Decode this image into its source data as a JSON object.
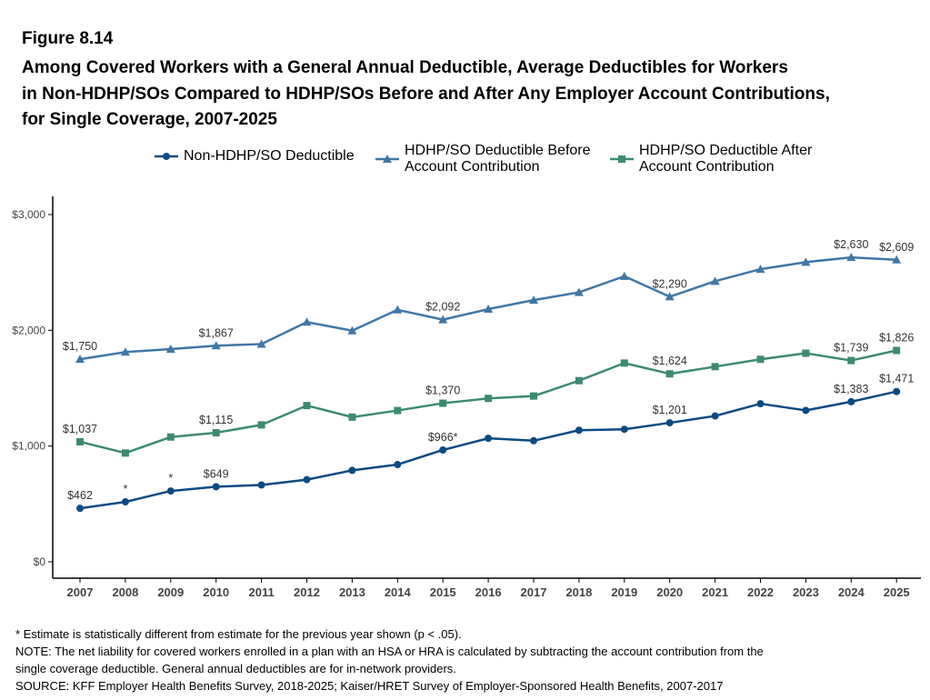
{
  "figure_label": "Figure 8.14",
  "title_lines": [
    "Among Covered Workers with a General Annual Deductible, Average Deductibles for Workers",
    "in Non-HDHP/SOs Compared to HDHP/SOs Before and After Any Employer Account Contributions,",
    "for Single Coverage, 2007-2025"
  ],
  "legend": [
    {
      "label": "Non-HDHP/SO Deductible",
      "marker": "circle",
      "color": "#0a4a82"
    },
    {
      "label": "HDHP/SO Deductible Before\nAccount Contribution",
      "marker": "triangle",
      "color": "#3f77a6"
    },
    {
      "label": "HDHP/SO Deductible After\nAccount Contribution",
      "marker": "square",
      "color": "#3c8a73"
    }
  ],
  "notes": [
    "* Estimate is statistically different from estimate for the previous year shown (p < .05).",
    "NOTE: The net liability for covered workers enrolled in a plan with an HSA or HRA is calculated by subtracting the account contribution from the",
    "single coverage deductible. General annual deductibles are for in-network providers.",
    "SOURCE: KFF Employer Health Benefits Survey, 2018-2025; Kaiser/HRET Survey of Employer-Sponsored Health Benefits, 2007-2017"
  ],
  "chart_data": {
    "type": "line",
    "x": [
      2007,
      2008,
      2009,
      2010,
      2011,
      2012,
      2013,
      2014,
      2015,
      2016,
      2017,
      2018,
      2019,
      2020,
      2021,
      2022,
      2023,
      2024,
      2025
    ],
    "ylim": [
      0,
      3000
    ],
    "yticks": [
      0,
      1000,
      2000,
      3000
    ],
    "ytick_labels": [
      "$0",
      "$1,000",
      "$2,000",
      "$3,000"
    ],
    "grid": false,
    "legend_position": "top",
    "series": [
      {
        "name": "Non-HDHP/SO Deductible",
        "marker": "circle",
        "color": "#0a4a82",
        "values": [
          462,
          518,
          612,
          649,
          664,
          710,
          790,
          840,
          966,
          1067,
          1046,
          1137,
          1145,
          1201,
          1260,
          1366,
          1308,
          1383,
          1471
        ],
        "labels": {
          "0": "$462",
          "1": "*",
          "2": "*",
          "3": "$649",
          "8": "$966*",
          "13": "$1,201",
          "17": "$1,383",
          "18": "$1,471"
        }
      },
      {
        "name": "HDHP/SO Deductible Before Account Contribution",
        "marker": "triangle",
        "color": "#3f77a6",
        "values": [
          1750,
          1812,
          1838,
          1867,
          1881,
          2071,
          1997,
          2177,
          2092,
          2183,
          2261,
          2328,
          2467,
          2290,
          2424,
          2528,
          2589,
          2630,
          2609
        ],
        "labels": {
          "0": "$1,750",
          "3": "$1,867",
          "8": "$2,092",
          "13": "$2,290",
          "17": "$2,630",
          "18": "$2,609"
        }
      },
      {
        "name": "HDHP/SO Deductible After Account Contribution",
        "marker": "square",
        "color": "#3c8a73",
        "values": [
          1037,
          940,
          1078,
          1115,
          1183,
          1350,
          1250,
          1307,
          1370,
          1412,
          1432,
          1565,
          1717,
          1624,
          1686,
          1749,
          1802,
          1739,
          1826
        ],
        "labels": {
          "0": "$1,037",
          "3": "$1,115",
          "8": "$1,370",
          "13": "$1,624",
          "17": "$1,739",
          "18": "$1,826"
        }
      }
    ]
  }
}
